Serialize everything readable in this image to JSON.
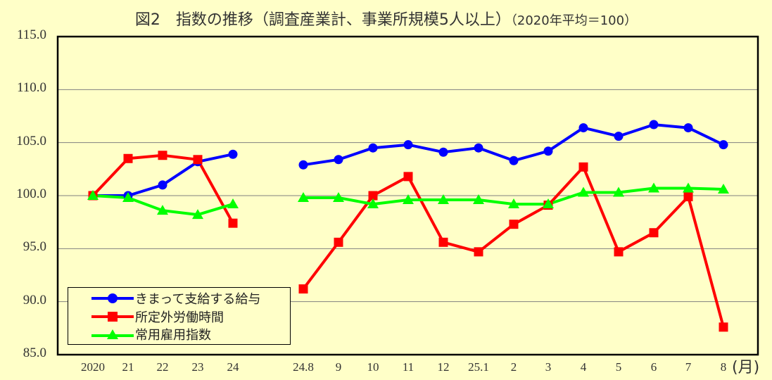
{
  "title": {
    "main": "図2　指数の推移（調査産業計、事業所規模5人以上）",
    "sub": "（2020年平均＝100）"
  },
  "colors": {
    "background": "#ffffc8",
    "blue": "#0000ff",
    "red": "#ff0000",
    "green": "#00ff00",
    "grid": "#808080",
    "frame": "#000000"
  },
  "x_unit_label": "(月)",
  "legend": {
    "items": [
      {
        "label": "きまって支給する給与",
        "color": "#0000ff",
        "marker": "circle"
      },
      {
        "label": "所定外労働時間",
        "color": "#ff0000",
        "marker": "square"
      },
      {
        "label": "常用雇用指数",
        "color": "#00ff00",
        "marker": "triangle"
      }
    ]
  },
  "chart_data": {
    "type": "line",
    "title": "図2　指数の推移（調査産業計、事業所規模5人以上）（2020年平均＝100）",
    "xlabel": "(月)",
    "ylabel": "",
    "ylim": [
      85.0,
      115.0
    ],
    "yticks": [
      "115.0",
      "110.0",
      "105.0",
      "100.0",
      "95.0",
      "90.0",
      "85.0"
    ],
    "grid": true,
    "legend_position": "lower-left inside",
    "segments": [
      {
        "name": "annual",
        "categories": [
          "2020",
          "21",
          "22",
          "23",
          "24"
        ]
      },
      {
        "name": "monthly",
        "categories": [
          "24.8",
          "9",
          "10",
          "11",
          "12",
          "25.1",
          "2",
          "3",
          "4",
          "5",
          "6",
          "7",
          "8"
        ]
      }
    ],
    "categories": [
      "2020",
      "21",
      "22",
      "23",
      "24",
      "24.8",
      "9",
      "10",
      "11",
      "12",
      "25.1",
      "2",
      "3",
      "4",
      "5",
      "6",
      "7",
      "8"
    ],
    "series": [
      {
        "name": "きまって支給する給与",
        "color": "#0000ff",
        "marker": "circle",
        "values": [
          100.0,
          100.0,
          101.0,
          103.2,
          103.9,
          102.9,
          103.4,
          104.5,
          104.8,
          104.1,
          104.5,
          103.3,
          104.2,
          106.4,
          105.6,
          106.7,
          106.4,
          104.8
        ]
      },
      {
        "name": "所定外労働時間",
        "color": "#ff0000",
        "marker": "square",
        "values": [
          100.0,
          103.5,
          103.8,
          103.4,
          97.4,
          91.2,
          95.6,
          100.0,
          101.8,
          95.6,
          94.7,
          97.3,
          99.1,
          102.7,
          94.7,
          96.5,
          99.9,
          87.6
        ]
      },
      {
        "name": "常用雇用指数",
        "color": "#00ff00",
        "marker": "triangle",
        "values": [
          100.0,
          99.8,
          98.6,
          98.2,
          99.2,
          99.8,
          99.8,
          99.2,
          99.6,
          99.6,
          99.6,
          99.2,
          99.2,
          100.3,
          100.3,
          100.7,
          100.7,
          100.6
        ]
      }
    ]
  }
}
